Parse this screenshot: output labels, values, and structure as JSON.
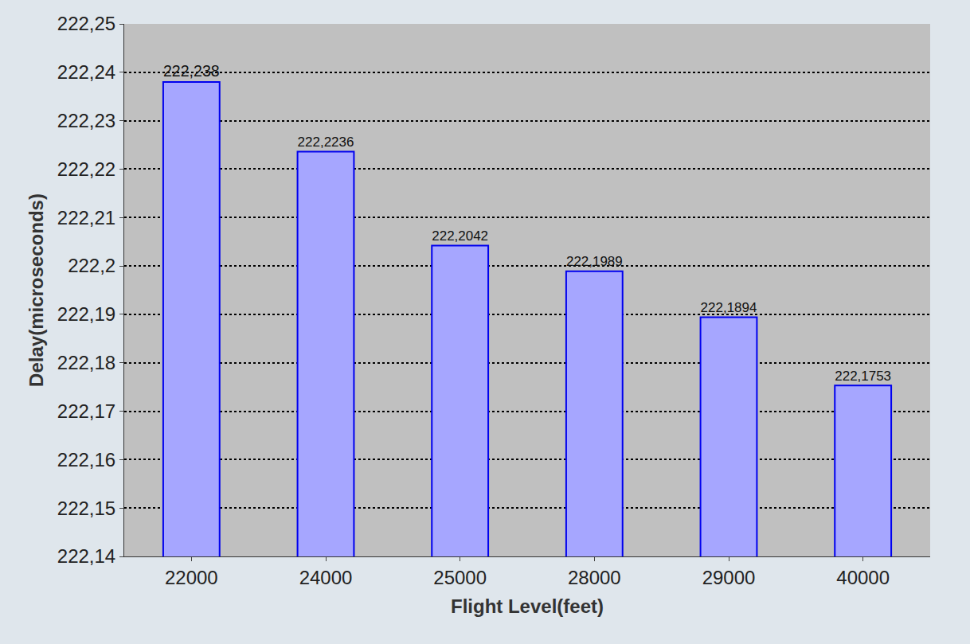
{
  "chart_data": {
    "type": "bar",
    "x_label": "Flight Level(feet)",
    "y_label": "Delay(microseconds)",
    "categories": [
      "22000",
      "24000",
      "25000",
      "28000",
      "29000",
      "40000"
    ],
    "values": [
      222.238,
      222.2236,
      222.2042,
      222.1989,
      222.1894,
      222.1753
    ],
    "value_labels": [
      "222,238",
      "222,2236",
      "222,2042",
      "222,1989",
      "222,1894",
      "222,1753"
    ],
    "color": "#a6a6ff",
    "ylim": [
      222.14,
      222.25
    ],
    "yticks": [
      {
        "value": 222.14,
        "label": "222,14"
      },
      {
        "value": 222.15,
        "label": "222,15"
      },
      {
        "value": 222.16,
        "label": "222,16"
      },
      {
        "value": 222.17,
        "label": "222,17"
      },
      {
        "value": 222.18,
        "label": "222,18"
      },
      {
        "value": 222.19,
        "label": "222,19"
      },
      {
        "value": 222.2,
        "label": "222,2"
      },
      {
        "value": 222.21,
        "label": "222,21"
      },
      {
        "value": 222.22,
        "label": "222,22"
      },
      {
        "value": 222.23,
        "label": "222,23"
      },
      {
        "value": 222.24,
        "label": "222,24"
      },
      {
        "value": 222.25,
        "label": "222,25"
      }
    ],
    "grid": true,
    "data_labels": true
  }
}
